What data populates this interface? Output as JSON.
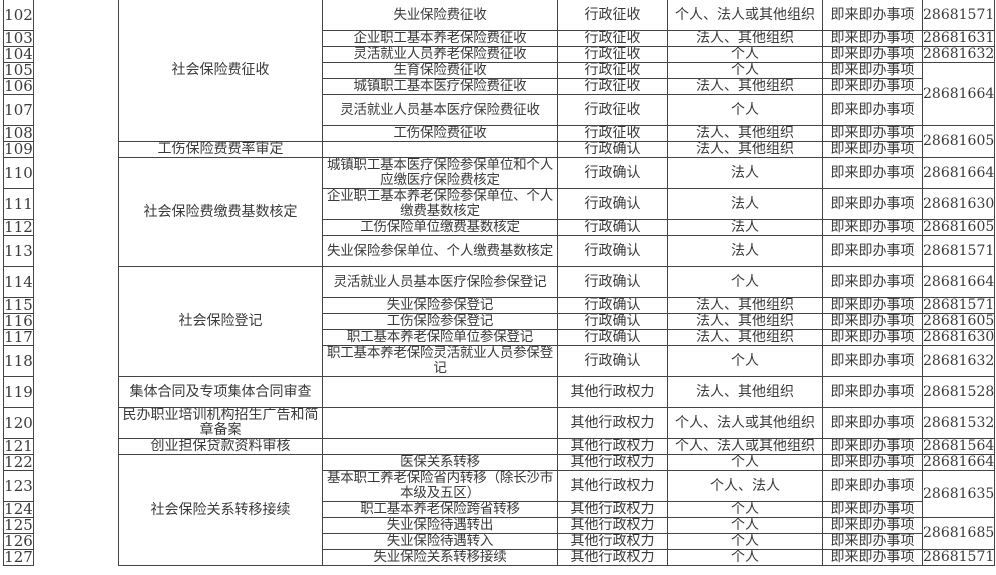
{
  "rows": [
    {
      "no": "102",
      "category": "社会保险费征收",
      "item": "失业保险费征收",
      "type": "行政征收",
      "subject": "个人、法人或其他组织",
      "kind": "即来即办事项",
      "phone": "28681571",
      "tall": true
    },
    {
      "no": "103",
      "category": null,
      "item": "企业职工基本养老保险费征收",
      "type": "行政征收",
      "subject": "法人、其他组织",
      "kind": "即来即办事项",
      "phone": "28681631",
      "tall": false
    },
    {
      "no": "104",
      "category": null,
      "item": "灵活就业人员养老保险费征收",
      "type": "行政征收",
      "subject": "个人",
      "kind": "即来即办事项",
      "phone": "28681632",
      "tall": false
    },
    {
      "no": "105",
      "category": null,
      "item": "生育保险费征收",
      "type": "行政征收",
      "subject": "个人",
      "kind": "即来即办事项",
      "phone": "28681664",
      "tall": false
    },
    {
      "no": "106",
      "category": null,
      "item": "城镇职工基本医疗保险费征收",
      "type": "行政征收",
      "subject": "法人、其他组织",
      "kind": "即来即办事项",
      "phone": null,
      "tall": false
    },
    {
      "no": "107",
      "category": null,
      "item": "灵活就业人员基本医疗保险费征收",
      "type": "行政征收",
      "subject": "个人",
      "kind": "即来即办事项",
      "phone": null,
      "tall": true
    },
    {
      "no": "108",
      "category": null,
      "item": "工伤保险费征收",
      "type": "行政征收",
      "subject": "法人、其他组织",
      "kind": "即来即办事项",
      "phone": "28681605",
      "tall": false
    },
    {
      "no": "109",
      "category": "工伤保险费费率审定",
      "item": "",
      "type": "行政确认",
      "subject": "法人、其他组织",
      "kind": "即来即办事项",
      "phone": null,
      "tall": false
    },
    {
      "no": "110",
      "category": "社会保险费缴费基数核定",
      "item": "城镇职工基本医疗保险参保单位和个人应缴医疗保险费核定",
      "type": "行政确认",
      "subject": "法人",
      "kind": "即来即办事项",
      "phone": "28681664",
      "tall": true
    },
    {
      "no": "111",
      "category": null,
      "item": "企业职工基本养老保险参保单位、个人缴费基数核定",
      "type": "行政确认",
      "subject": "法人",
      "kind": "即来即办事项",
      "phone": "28681630",
      "tall": true
    },
    {
      "no": "112",
      "category": null,
      "item": "工伤保险单位缴费基数核定",
      "type": "行政确认",
      "subject": "法人",
      "kind": "即来即办事项",
      "phone": "28681605",
      "tall": false
    },
    {
      "no": "113",
      "category": null,
      "item": "失业保险参保单位、个人缴费基数核定",
      "type": "行政确认",
      "subject": "法人",
      "kind": "即来即办事项",
      "phone": "28681571",
      "tall": true
    },
    {
      "no": "114",
      "category": "社会保险登记",
      "item": "灵活就业人员基本医疗保险参保登记",
      "type": "行政确认",
      "subject": "个人",
      "kind": "即来即办事项",
      "phone": "28681664",
      "tall": true
    },
    {
      "no": "115",
      "category": null,
      "item": "失业保险参保登记",
      "type": "行政确认",
      "subject": "法人、其他组织",
      "kind": "即来即办事项",
      "phone": "28681571",
      "tall": false
    },
    {
      "no": "116",
      "category": null,
      "item": "工伤保险参保登记",
      "type": "行政确认",
      "subject": "法人、其他组织",
      "kind": "即来即办事项",
      "phone": "28681605",
      "tall": false
    },
    {
      "no": "117",
      "category": null,
      "item": "职工基本养老保险单位参保登记",
      "type": "行政确认",
      "subject": "法人、其他组织",
      "kind": "即来即办事项",
      "phone": "28681630",
      "tall": false
    },
    {
      "no": "118",
      "category": null,
      "item": "职工基本养老保险灵活就业人员参保登记",
      "type": "行政确认",
      "subject": "个人",
      "kind": "即来即办事项",
      "phone": "28681632",
      "tall": true
    },
    {
      "no": "119",
      "category": "集体合同及专项集体合同审查",
      "item": "",
      "type": "其他行政权力",
      "subject": "法人、其他组织",
      "kind": "即来即办事项",
      "phone": "28681528",
      "tall": true
    },
    {
      "no": "120",
      "category": "民办职业培训机构招生广告和简章备案",
      "item": "",
      "type": "其他行政权力",
      "subject": "个人、法人或其他组织",
      "kind": "即来即办事项",
      "phone": "28681532",
      "tall": true
    },
    {
      "no": "121",
      "category": "创业担保贷款资料审核",
      "item": "",
      "type": "其他行政权力",
      "subject": "个人、法人或其他组织",
      "kind": "即来即办事项",
      "phone": "28681564",
      "tall": false
    },
    {
      "no": "122",
      "category": "社会保险关系转移接续",
      "item": "医保关系转移",
      "type": "其他行政权力",
      "subject": "个人",
      "kind": "即来即办事项",
      "phone": "28681664",
      "tall": false
    },
    {
      "no": "123",
      "category": null,
      "item": "基本职工养老保险省内转移（除长沙市本级及五区）",
      "type": "其他行政权力",
      "subject": "个人、法人",
      "kind": "即来即办事项",
      "phone": "28681635",
      "tall": true
    },
    {
      "no": "124",
      "category": null,
      "item": "职工基本养老保险跨省转移",
      "type": "其他行政权力",
      "subject": "个人",
      "kind": "即来即办事项",
      "phone": null,
      "tall": false
    },
    {
      "no": "125",
      "category": null,
      "item": "失业保险待遇转出",
      "type": "其他行政权力",
      "subject": "个人",
      "kind": "即来即办事项",
      "phone": "28681685",
      "tall": false
    },
    {
      "no": "126",
      "category": null,
      "item": "失业保险待遇转入",
      "type": "其他行政权力",
      "subject": "个人",
      "kind": "即来即办事项",
      "phone": null,
      "tall": false
    },
    {
      "no": "127",
      "category": null,
      "item": "失业保险关系转移接续",
      "type": "其他行政权力",
      "subject": "个人",
      "kind": "即来即办事项",
      "phone": "28681571",
      "tall": false
    }
  ]
}
